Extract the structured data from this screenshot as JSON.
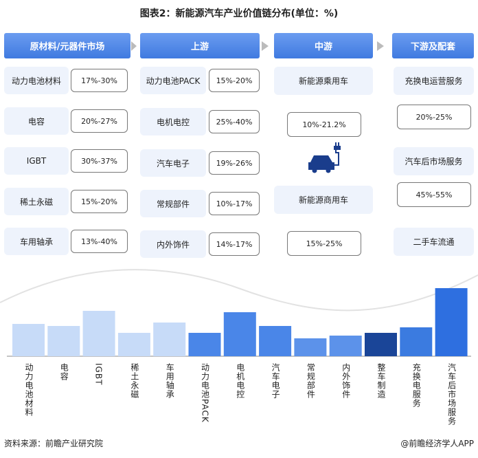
{
  "title": "图表2：新能源汽车产业价值链分布(单位：%)",
  "columns": [
    {
      "header": "原材料/元器件市场",
      "items": [
        {
          "label": "动力电池材料",
          "value": "17%-30%"
        },
        {
          "label": "电容",
          "value": "20%-27%"
        },
        {
          "label": "IGBT",
          "value": "30%-37%"
        },
        {
          "label": "稀土永磁",
          "value": "15%-20%"
        },
        {
          "label": "车用轴承",
          "value": "13%-40%"
        }
      ]
    },
    {
      "header": "上游",
      "items": [
        {
          "label": "动力电池PACK",
          "value": "15%-20%"
        },
        {
          "label": "电机电控",
          "value": "25%-40%"
        },
        {
          "label": "汽车电子",
          "value": "19%-26%"
        },
        {
          "label": "常规部件",
          "value": "10%-17%"
        },
        {
          "label": "内外饰件",
          "value": "14%-17%"
        }
      ]
    },
    {
      "header": "中游",
      "items": [
        {
          "label": "新能源乘用车",
          "value": "10%-21.2%"
        },
        {
          "label": "新能源商用车",
          "value": "15%-25%"
        }
      ]
    },
    {
      "header": "下游及配套",
      "items": [
        {
          "label": "充换电运营服务",
          "value": "20%-25%"
        },
        {
          "label": "汽车后市场服务",
          "value": "45%-55%"
        },
        {
          "label": "二手车流通"
        }
      ]
    }
  ],
  "chart_data": {
    "type": "bar",
    "categories": [
      "动力电池材料",
      "电容",
      "IGBT",
      "稀土永磁",
      "车用轴承",
      "动力电池PACK",
      "电机电控",
      "汽车电子",
      "常规部件",
      "内外饰件",
      "整车制造",
      "充换电服务",
      "汽车后市场服务"
    ],
    "values": [
      47,
      44,
      66,
      34,
      49,
      34,
      64,
      44,
      26,
      30,
      34,
      42,
      99
    ],
    "colors": [
      "#c7dbf8",
      "#c7dbf8",
      "#c7dbf8",
      "#c7dbf8",
      "#c7dbf8",
      "#4a86e8",
      "#4a86e8",
      "#4a86e8",
      "#5c92ea",
      "#5c92ea",
      "#1a4598",
      "#3b7be0",
      "#2e6fe0"
    ],
    "ylim": [
      0,
      100
    ]
  },
  "footer": {
    "source": "资料来源：前瞻产业研究院",
    "credit": "@前瞻经济学人APP"
  }
}
